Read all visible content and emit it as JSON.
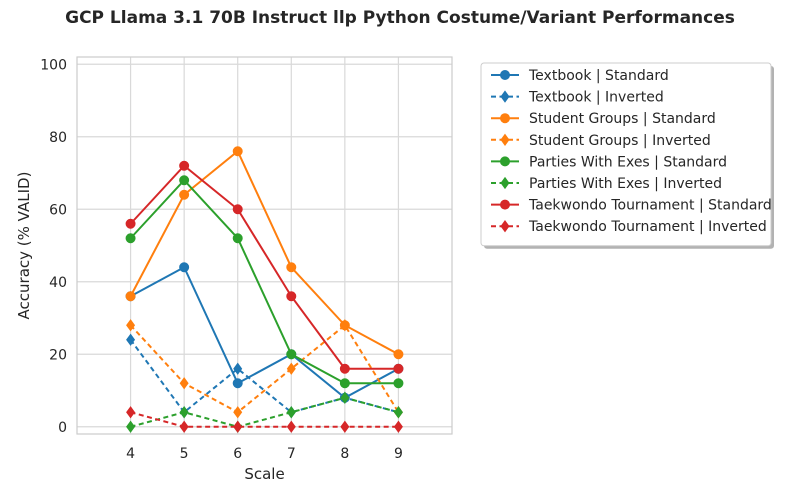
{
  "chart_data": {
    "type": "line",
    "title": "GCP Llama 3.1 70B Instruct llp Python Costume/Variant Performances",
    "xlabel": "Scale",
    "ylabel": "Accuracy (% VALID)",
    "x": [
      4,
      5,
      6,
      7,
      8,
      9
    ],
    "xlim": [
      3,
      10
    ],
    "ylim": [
      -2,
      102
    ],
    "yticks": [
      0,
      20,
      40,
      60,
      80,
      100
    ],
    "grid": true,
    "legend_position": "outside-right",
    "series": [
      {
        "name": "Textbook | Standard",
        "color": "#1f77b4",
        "style": "solid",
        "marker": "circle",
        "values": [
          36,
          44,
          12,
          20,
          8,
          16
        ]
      },
      {
        "name": "Textbook | Inverted",
        "color": "#1f77b4",
        "style": "dashed",
        "marker": "diamond",
        "values": [
          24,
          4,
          16,
          4,
          8,
          4
        ]
      },
      {
        "name": "Student Groups | Standard",
        "color": "#ff7f0e",
        "style": "solid",
        "marker": "circle",
        "values": [
          36,
          64,
          76,
          44,
          28,
          20
        ]
      },
      {
        "name": "Student Groups | Inverted",
        "color": "#ff7f0e",
        "style": "dashed",
        "marker": "diamond",
        "values": [
          28,
          12,
          4,
          16,
          28,
          4
        ]
      },
      {
        "name": "Parties With Exes | Standard",
        "color": "#2ca02c",
        "style": "solid",
        "marker": "circle",
        "values": [
          52,
          68,
          52,
          20,
          12,
          12
        ]
      },
      {
        "name": "Parties With Exes | Inverted",
        "color": "#2ca02c",
        "style": "dashed",
        "marker": "diamond",
        "values": [
          0,
          4,
          0,
          4,
          8,
          4
        ]
      },
      {
        "name": "Taekwondo Tournament | Standard",
        "color": "#d62728",
        "style": "solid",
        "marker": "circle",
        "values": [
          56,
          72,
          60,
          36,
          16,
          16
        ]
      },
      {
        "name": "Taekwondo Tournament | Inverted",
        "color": "#d62728",
        "style": "dashed",
        "marker": "diamond",
        "values": [
          4,
          0,
          0,
          0,
          0,
          0
        ]
      }
    ]
  }
}
